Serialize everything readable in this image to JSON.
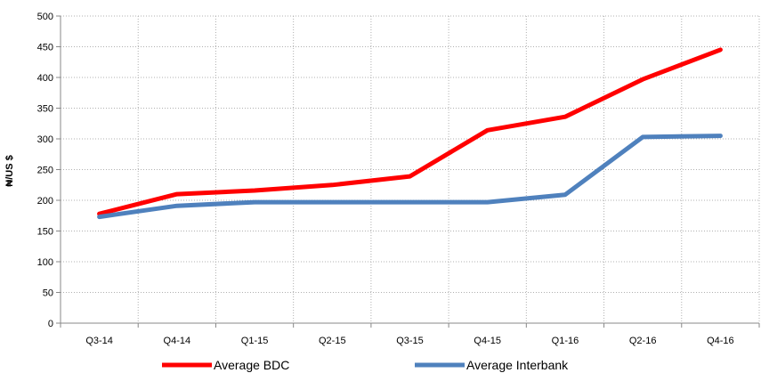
{
  "chart_data": {
    "type": "line",
    "categories": [
      "Q3-14",
      "Q4-14",
      "Q1-15",
      "Q2-15",
      "Q3-15",
      "Q4-15",
      "Q1-16",
      "Q2-16",
      "Q4-16"
    ],
    "series": [
      {
        "name": "Average BDC",
        "values": [
          178,
          210,
          216,
          225,
          239,
          314,
          336,
          397,
          445
        ],
        "color": "#ff0000"
      },
      {
        "name": "Average Interbank",
        "values": [
          173,
          191,
          197,
          197,
          197,
          197,
          209,
          303,
          305
        ],
        "color": "#4f81bd"
      }
    ],
    "ylabel": "₦/US $",
    "xlabel": "",
    "title": "",
    "ylim": [
      0,
      500
    ],
    "yticks": [
      0,
      50,
      100,
      150,
      200,
      250,
      300,
      350,
      400,
      450,
      500
    ],
    "grid": true,
    "legend": "bottom"
  }
}
